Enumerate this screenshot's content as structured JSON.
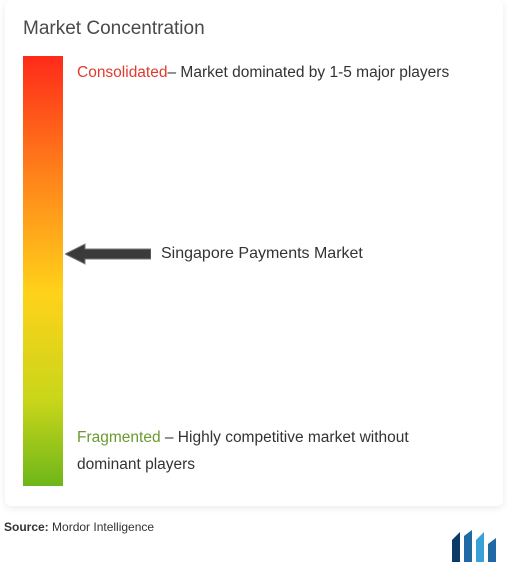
{
  "title": "Market Concentration",
  "gradient": {
    "colors": [
      "#ff2a1a",
      "#ff7a1a",
      "#ffd21a",
      "#c9d61a",
      "#6eb61a"
    ],
    "stops": [
      0,
      25,
      55,
      80,
      100
    ]
  },
  "top": {
    "keyword": "Consolidated",
    "keyword_color": "#e03a2f",
    "description": "– Market dominated by 1-5 major players"
  },
  "bottom": {
    "keyword": "Fragmented",
    "keyword_color": "#6a9a2e",
    "description": " – Highly competitive market without dominant players"
  },
  "marker": {
    "label": "Singapore Payments Market",
    "position_pct": 46,
    "arrow_fill": "#3a3a3a",
    "arrow_stroke": "#777777"
  },
  "source": {
    "label": "Source:",
    "value": " Mordor Intelligence"
  },
  "text_color": "#333333",
  "title_color": "#4a4a4a",
  "logo_colors": {
    "bar1": "#0b3b66",
    "bar2": "#1f6aa5",
    "bar3": "#3aa0d8"
  },
  "background": "#ffffff"
}
